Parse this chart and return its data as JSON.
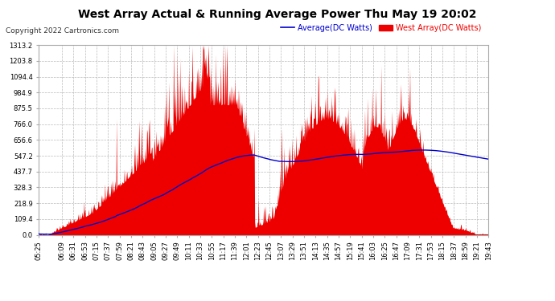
{
  "title": "West Array Actual & Running Average Power Thu May 19 20:02",
  "copyright": "Copyright 2022 Cartronics.com",
  "legend_avg": "Average(DC Watts)",
  "legend_west": "West Array(DC Watts)",
  "ylabel_values": [
    0.0,
    109.4,
    218.9,
    328.3,
    437.7,
    547.2,
    656.6,
    766.0,
    875.5,
    984.9,
    1094.4,
    1203.8,
    1313.2
  ],
  "ymax": 1313.2,
  "ymin": 0.0,
  "background_color": "#ffffff",
  "grid_color": "#bbbbbb",
  "bar_color": "#ee0000",
  "line_color": "#0000cc",
  "title_color": "#000000",
  "copyright_color": "#333333",
  "avg_legend_color": "#0000cc",
  "west_legend_color": "#ee0000",
  "x_tick_labels": [
    "05:25",
    "06:09",
    "06:31",
    "06:53",
    "07:15",
    "07:37",
    "07:59",
    "08:21",
    "08:43",
    "09:05",
    "09:27",
    "09:49",
    "10:11",
    "10:33",
    "10:55",
    "11:17",
    "11:39",
    "12:01",
    "12:23",
    "12:45",
    "13:07",
    "13:29",
    "13:51",
    "14:13",
    "14:35",
    "14:57",
    "15:19",
    "15:41",
    "16:03",
    "16:25",
    "16:47",
    "17:09",
    "17:31",
    "17:53",
    "18:15",
    "18:37",
    "18:59",
    "19:21",
    "19:43"
  ],
  "figwidth": 6.9,
  "figheight": 3.75,
  "dpi": 100
}
